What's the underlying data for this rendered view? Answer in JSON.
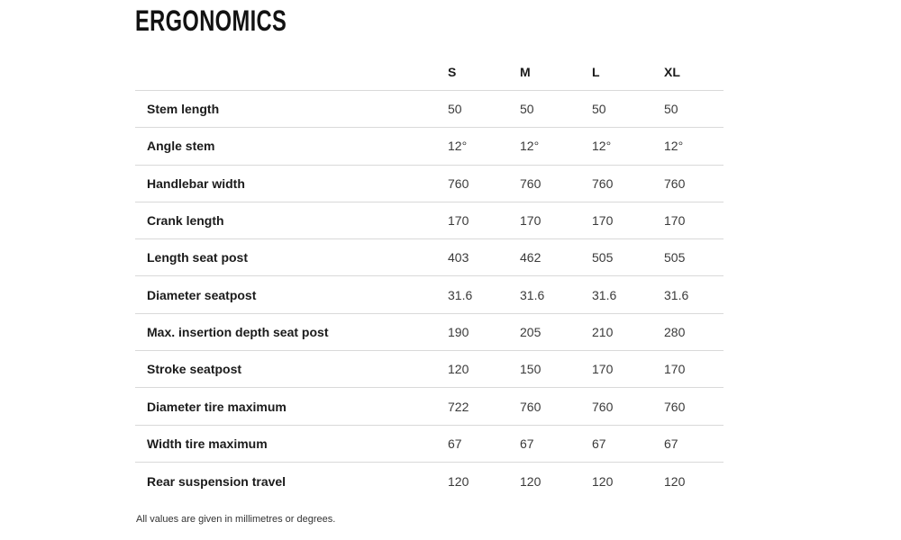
{
  "page": {
    "title": "ERGONOMICS",
    "footnote": "All values are given in millimetres or degrees."
  },
  "table": {
    "columns": [
      "S",
      "M",
      "L",
      "XL"
    ],
    "rows": [
      {
        "label": "Stem length",
        "values": [
          "50",
          "50",
          "50",
          "50"
        ]
      },
      {
        "label": "Angle stem",
        "values": [
          "12°",
          "12°",
          "12°",
          "12°"
        ]
      },
      {
        "label": "Handlebar width",
        "values": [
          "760",
          "760",
          "760",
          "760"
        ]
      },
      {
        "label": "Crank length",
        "values": [
          "170",
          "170",
          "170",
          "170"
        ]
      },
      {
        "label": "Length seat post",
        "values": [
          "403",
          "462",
          "505",
          "505"
        ]
      },
      {
        "label": "Diameter seatpost",
        "values": [
          "31.6",
          "31.6",
          "31.6",
          "31.6"
        ]
      },
      {
        "label": "Max. insertion depth seat post",
        "values": [
          "190",
          "205",
          "210",
          "280"
        ]
      },
      {
        "label": "Stroke seatpost",
        "values": [
          "120",
          "150",
          "170",
          "170"
        ]
      },
      {
        "label": "Diameter tire maximum",
        "values": [
          "722",
          "760",
          "760",
          "760"
        ]
      },
      {
        "label": "Width tire maximum",
        "values": [
          "67",
          "67",
          "67",
          "67"
        ]
      },
      {
        "label": "Rear suspension travel",
        "values": [
          "120",
          "120",
          "120",
          "120"
        ]
      }
    ]
  },
  "colors": {
    "background": "#ffffff",
    "heading_text": "#121212",
    "label_text": "#1b1b1b",
    "value_text": "#3a3a3a",
    "divider": "#d9d9d9",
    "footnote_text": "#333333"
  }
}
